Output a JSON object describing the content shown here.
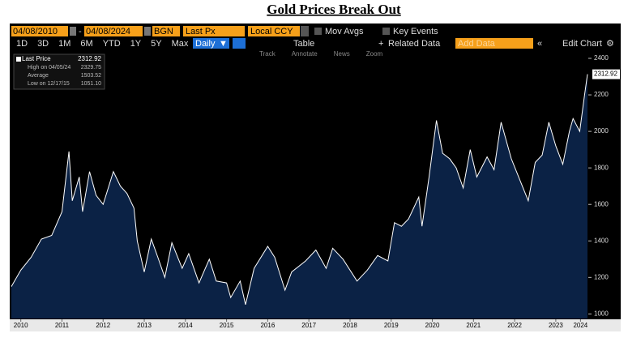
{
  "title": "Gold Prices Break Out",
  "toolbar": {
    "start_date": "04/08/2010",
    "end_date": "04/08/2024",
    "source": "BGN",
    "field": "Last Px",
    "currency": "Local CCY",
    "mov_avgs": "Mov Avgs",
    "key_events": "Key Events",
    "periods": [
      "1D",
      "3D",
      "1M",
      "6M",
      "YTD",
      "1Y",
      "5Y",
      "Max"
    ],
    "frequency": "Daily",
    "table": "Table",
    "related_data": "Related Data",
    "add_data": "Add Data",
    "edit_chart": "Edit Chart",
    "tools": [
      "Track",
      "Annotate",
      "News",
      "Zoom"
    ]
  },
  "chart_data": {
    "type": "area",
    "line_color": "#ffffff",
    "fill_color": "#0b2245",
    "stats": [
      {
        "label": "Last Price",
        "value": "2312.92"
      },
      {
        "label": "High on 04/05/24",
        "value": "2329.75"
      },
      {
        "label": "Average",
        "value": "1503.52"
      },
      {
        "label": "Low on 12/17/15",
        "value": "1051.10"
      }
    ],
    "x": [
      2010.27,
      2010.5,
      2010.75,
      2011.0,
      2011.25,
      2011.5,
      2011.67,
      2011.75,
      2011.92,
      2012.0,
      2012.17,
      2012.33,
      2012.5,
      2012.75,
      2012.92,
      2013.08,
      2013.25,
      2013.33,
      2013.5,
      2013.67,
      2013.83,
      2014.0,
      2014.17,
      2014.42,
      2014.58,
      2014.83,
      2015.08,
      2015.25,
      2015.5,
      2015.6,
      2015.83,
      2015.96,
      2016.17,
      2016.5,
      2016.67,
      2016.92,
      2017.08,
      2017.42,
      2017.67,
      2017.92,
      2018.08,
      2018.33,
      2018.67,
      2018.92,
      2019.17,
      2019.42,
      2019.58,
      2019.75,
      2019.92,
      2020.17,
      2020.25,
      2020.42,
      2020.6,
      2020.75,
      2020.92,
      2021.08,
      2021.25,
      2021.42,
      2021.58,
      2021.83,
      2022.0,
      2022.17,
      2022.42,
      2022.67,
      2022.83,
      2023.0,
      2023.17,
      2023.33,
      2023.5,
      2023.67,
      2023.83,
      2023.92,
      2024.08,
      2024.2,
      2024.27
    ],
    "series": [
      {
        "values": [
          1150,
          1240,
          1310,
          1410,
          1430,
          1560,
          1890,
          1620,
          1750,
          1560,
          1780,
          1650,
          1600,
          1780,
          1700,
          1660,
          1580,
          1400,
          1230,
          1410,
          1310,
          1200,
          1390,
          1250,
          1330,
          1170,
          1300,
          1180,
          1170,
          1090,
          1180,
          1051,
          1250,
          1370,
          1310,
          1130,
          1230,
          1290,
          1350,
          1250,
          1360,
          1300,
          1180,
          1240,
          1320,
          1290,
          1500,
          1480,
          1520,
          1640,
          1480,
          1750,
          2060,
          1880,
          1850,
          1800,
          1690,
          1900,
          1750,
          1860,
          1790,
          2050,
          1850,
          1710,
          1620,
          1830,
          1870,
          2050,
          1920,
          1820,
          2000,
          2070,
          2000,
          2200,
          2312.92
        ]
      }
    ],
    "xlim": [
      2010.27,
      2024.27
    ],
    "xticks": [
      {
        "value": 2010.5,
        "label": "2010"
      },
      {
        "value": 2011.5,
        "label": "2011"
      },
      {
        "value": 2012.5,
        "label": "2012"
      },
      {
        "value": 2013.5,
        "label": "2013"
      },
      {
        "value": 2014.5,
        "label": "2014"
      },
      {
        "value": 2015.5,
        "label": "2015"
      },
      {
        "value": 2016.5,
        "label": "2016"
      },
      {
        "value": 2017.5,
        "label": "2017"
      },
      {
        "value": 2018.5,
        "label": "2018"
      },
      {
        "value": 2019.5,
        "label": "2019"
      },
      {
        "value": 2020.5,
        "label": "2020"
      },
      {
        "value": 2021.5,
        "label": "2021"
      },
      {
        "value": 2022.5,
        "label": "2022"
      },
      {
        "value": 2023.5,
        "label": "2023"
      },
      {
        "value": 2024.1,
        "label": "2024"
      }
    ],
    "ylim": [
      975,
      2440
    ],
    "yticks": [
      1000,
      1200,
      1400,
      1600,
      1800,
      2000,
      2200,
      2400
    ]
  }
}
